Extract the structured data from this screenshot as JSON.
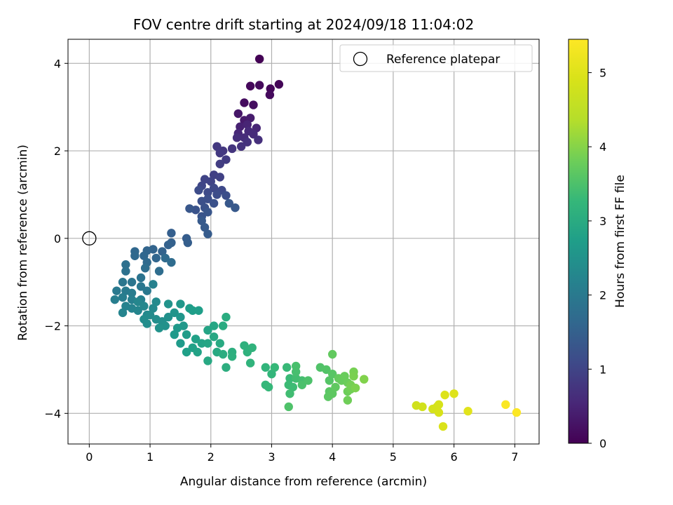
{
  "chart_data": {
    "type": "scatter",
    "title": "FOV centre drift starting at 2024/09/18 11:04:02",
    "xlabel": "Angular distance from reference (arcmin)",
    "ylabel": "Rotation from reference (arcmin)",
    "xlim": [
      -0.35,
      7.4
    ],
    "ylim": [
      -4.7,
      4.55
    ],
    "xticks": [
      0,
      1,
      2,
      3,
      4,
      5,
      6,
      7
    ],
    "yticks": [
      -4,
      -2,
      0,
      2,
      4
    ],
    "grid": true,
    "legend": {
      "placement": "top-right",
      "entries": [
        "Reference platepar"
      ]
    },
    "reference_point": {
      "x": 0,
      "y": 0,
      "label": "Reference platepar"
    },
    "colorbar": {
      "label": "Hours from first FF file",
      "range": [
        0,
        5.45
      ],
      "ticks": [
        0,
        1,
        2,
        3,
        4,
        5
      ],
      "colormap": "viridis"
    },
    "points": [
      [
        2.8,
        4.1,
        0.02
      ],
      [
        3.12,
        3.52,
        0.05
      ],
      [
        2.98,
        3.42,
        0.08
      ],
      [
        2.65,
        3.48,
        0.1
      ],
      [
        2.8,
        3.5,
        0.12
      ],
      [
        2.97,
        3.28,
        0.14
      ],
      [
        2.55,
        3.1,
        0.16
      ],
      [
        2.7,
        3.05,
        0.18
      ],
      [
        2.45,
        2.85,
        0.3
      ],
      [
        2.55,
        2.7,
        0.35
      ],
      [
        2.65,
        2.75,
        0.38
      ],
      [
        2.48,
        2.55,
        0.45
      ],
      [
        2.6,
        2.6,
        0.5
      ],
      [
        2.75,
        2.52,
        0.52
      ],
      [
        2.45,
        2.4,
        0.55
      ],
      [
        2.62,
        2.45,
        0.58
      ],
      [
        2.7,
        2.38,
        0.6
      ],
      [
        2.55,
        2.3,
        0.62
      ],
      [
        2.43,
        2.3,
        0.65
      ],
      [
        2.78,
        2.25,
        0.68
      ],
      [
        2.6,
        2.2,
        0.7
      ],
      [
        2.5,
        2.1,
        0.72
      ],
      [
        2.35,
        2.05,
        0.75
      ],
      [
        2.2,
        2.0,
        0.78
      ],
      [
        2.1,
        2.1,
        0.8
      ],
      [
        2.15,
        1.95,
        0.82
      ],
      [
        2.25,
        1.8,
        0.85
      ],
      [
        2.15,
        1.7,
        0.88
      ],
      [
        2.05,
        1.45,
        0.92
      ],
      [
        2.15,
        1.4,
        0.95
      ],
      [
        2.0,
        1.3,
        0.98
      ],
      [
        1.9,
        1.35,
        1.0
      ],
      [
        1.85,
        1.2,
        1.02
      ],
      [
        2.05,
        1.15,
        1.05
      ],
      [
        2.18,
        1.1,
        1.08
      ],
      [
        1.95,
        1.05,
        1.1
      ],
      [
        1.8,
        1.1,
        1.12
      ],
      [
        2.1,
        1.0,
        1.14
      ],
      [
        2.25,
        0.98,
        1.16
      ],
      [
        1.95,
        0.9,
        1.18
      ],
      [
        1.85,
        0.85,
        1.2
      ],
      [
        2.05,
        0.8,
        1.22
      ],
      [
        1.9,
        0.7,
        1.24
      ],
      [
        1.75,
        0.65,
        1.26
      ],
      [
        1.85,
        0.5,
        1.28
      ],
      [
        1.95,
        0.6,
        1.3
      ],
      [
        1.65,
        0.68,
        1.32
      ],
      [
        2.3,
        0.8,
        1.34
      ],
      [
        2.4,
        0.7,
        1.36
      ],
      [
        1.85,
        0.4,
        1.38
      ],
      [
        1.9,
        0.25,
        1.4
      ],
      [
        1.95,
        0.1,
        1.42
      ],
      [
        1.6,
        0.0,
        1.44
      ],
      [
        1.62,
        -0.1,
        1.46
      ],
      [
        1.35,
        0.12,
        1.48
      ],
      [
        1.35,
        -0.1,
        1.5
      ],
      [
        1.3,
        -0.15,
        1.52
      ],
      [
        1.2,
        -0.3,
        1.54
      ],
      [
        1.05,
        -0.25,
        1.56
      ],
      [
        0.95,
        -0.28,
        1.58
      ],
      [
        1.1,
        -0.45,
        1.6
      ],
      [
        0.9,
        -0.4,
        1.62
      ],
      [
        0.75,
        -0.3,
        1.64
      ],
      [
        0.75,
        -0.4,
        1.66
      ],
      [
        0.95,
        -0.55,
        1.68
      ],
      [
        1.25,
        -0.45,
        1.7
      ],
      [
        1.35,
        -0.55,
        1.72
      ],
      [
        1.15,
        -0.75,
        1.74
      ],
      [
        0.92,
        -0.68,
        1.76
      ],
      [
        0.6,
        -0.6,
        1.8
      ],
      [
        0.6,
        -0.75,
        1.82
      ],
      [
        0.85,
        -0.9,
        1.86
      ],
      [
        0.7,
        -1.0,
        1.9
      ],
      [
        0.55,
        -1.0,
        1.92
      ],
      [
        0.85,
        -1.1,
        1.95
      ],
      [
        0.95,
        -1.2,
        1.98
      ],
      [
        0.45,
        -1.2,
        2.0
      ],
      [
        0.6,
        -1.2,
        2.02
      ],
      [
        0.7,
        -1.25,
        2.05
      ],
      [
        0.55,
        -1.35,
        2.08
      ],
      [
        0.42,
        -1.4,
        2.1
      ],
      [
        0.7,
        -1.4,
        2.12
      ],
      [
        0.85,
        -1.4,
        2.14
      ],
      [
        1.05,
        -1.05,
        2.16
      ],
      [
        0.6,
        -1.55,
        2.18
      ],
      [
        0.7,
        -1.6,
        2.2
      ],
      [
        0.55,
        -1.7,
        2.22
      ],
      [
        0.8,
        -1.65,
        2.24
      ],
      [
        0.8,
        -1.45,
        2.26
      ],
      [
        0.9,
        -1.55,
        2.28
      ],
      [
        0.95,
        -1.75,
        2.3
      ],
      [
        1.05,
        -1.6,
        2.32
      ],
      [
        1.1,
        -1.45,
        2.34
      ],
      [
        1.0,
        -1.75,
        2.36
      ],
      [
        0.9,
        -1.85,
        2.38
      ],
      [
        0.95,
        -1.95,
        2.4
      ],
      [
        1.1,
        -1.85,
        2.42
      ],
      [
        1.2,
        -1.9,
        2.44
      ],
      [
        1.3,
        -1.8,
        2.46
      ],
      [
        1.25,
        -2.0,
        2.48
      ],
      [
        1.15,
        -2.05,
        2.5
      ],
      [
        1.3,
        -1.5,
        2.52
      ],
      [
        1.4,
        -1.7,
        2.54
      ],
      [
        1.5,
        -1.8,
        2.56
      ],
      [
        1.5,
        -1.5,
        2.58
      ],
      [
        1.55,
        -2.0,
        2.6
      ],
      [
        1.45,
        -2.05,
        2.62
      ],
      [
        1.4,
        -2.2,
        2.64
      ],
      [
        1.5,
        -2.4,
        2.66
      ],
      [
        1.6,
        -2.2,
        2.68
      ],
      [
        1.65,
        -1.6,
        2.7
      ],
      [
        1.7,
        -1.65,
        2.72
      ],
      [
        1.8,
        -1.65,
        2.74
      ],
      [
        1.6,
        -2.6,
        2.76
      ],
      [
        1.7,
        -2.5,
        2.78
      ],
      [
        1.75,
        -2.3,
        2.8
      ],
      [
        1.78,
        -2.6,
        2.82
      ],
      [
        1.85,
        -2.4,
        2.84
      ],
      [
        1.95,
        -2.1,
        2.86
      ],
      [
        1.95,
        -2.4,
        2.88
      ],
      [
        2.05,
        -2.0,
        2.9
      ],
      [
        2.05,
        -2.25,
        2.92
      ],
      [
        1.95,
        -2.8,
        2.94
      ],
      [
        2.1,
        -2.6,
        2.96
      ],
      [
        2.15,
        -2.4,
        2.98
      ],
      [
        2.2,
        -2.0,
        3.0
      ],
      [
        2.25,
        -1.8,
        3.02
      ],
      [
        2.2,
        -2.65,
        3.04
      ],
      [
        2.25,
        -2.95,
        3.06
      ],
      [
        2.35,
        -2.6,
        3.08
      ],
      [
        2.35,
        -2.7,
        3.1
      ],
      [
        2.55,
        -2.45,
        3.12
      ],
      [
        2.6,
        -2.6,
        3.14
      ],
      [
        2.68,
        -2.5,
        3.16
      ],
      [
        2.65,
        -2.85,
        3.18
      ],
      [
        2.9,
        -2.95,
        3.2
      ],
      [
        3.0,
        -3.1,
        3.22
      ],
      [
        2.9,
        -3.35,
        3.24
      ],
      [
        2.95,
        -3.4,
        3.26
      ],
      [
        3.05,
        -2.95,
        3.28
      ],
      [
        3.25,
        -2.95,
        3.3
      ],
      [
        3.3,
        -3.2,
        3.32
      ],
      [
        3.28,
        -3.35,
        3.34
      ],
      [
        3.35,
        -3.4,
        3.36
      ],
      [
        3.3,
        -3.55,
        3.38
      ],
      [
        3.4,
        -3.2,
        3.4
      ],
      [
        3.5,
        -3.25,
        3.42
      ],
      [
        3.4,
        -3.05,
        3.44
      ],
      [
        3.4,
        -2.92,
        3.46
      ],
      [
        3.5,
        -3.35,
        3.48
      ],
      [
        3.6,
        -3.25,
        3.5
      ],
      [
        3.28,
        -3.85,
        3.52
      ],
      [
        3.8,
        -2.95,
        3.54
      ],
      [
        3.9,
        -3.0,
        3.56
      ],
      [
        3.95,
        -3.25,
        3.58
      ],
      [
        4.0,
        -3.1,
        3.6
      ],
      [
        3.95,
        -3.5,
        3.62
      ],
      [
        3.93,
        -3.62,
        3.64
      ],
      [
        4.0,
        -3.55,
        3.66
      ],
      [
        4.05,
        -3.4,
        3.68
      ],
      [
        4.0,
        -2.65,
        3.7
      ],
      [
        4.1,
        -3.2,
        3.72
      ],
      [
        4.15,
        -3.25,
        3.74
      ],
      [
        4.2,
        -3.15,
        3.76
      ],
      [
        4.25,
        -3.3,
        3.78
      ],
      [
        4.25,
        -3.5,
        3.8
      ],
      [
        4.25,
        -3.7,
        3.82
      ],
      [
        4.3,
        -3.45,
        3.84
      ],
      [
        4.3,
        -3.35,
        3.86
      ],
      [
        4.35,
        -3.05,
        3.88
      ],
      [
        4.35,
        -3.15,
        3.9
      ],
      [
        4.38,
        -3.42,
        3.92
      ],
      [
        4.52,
        -3.22,
        3.96
      ],
      [
        5.38,
        -3.82,
        4.78
      ],
      [
        5.48,
        -3.85,
        4.8
      ],
      [
        5.65,
        -3.9,
        4.84
      ],
      [
        5.72,
        -3.85,
        4.86
      ],
      [
        5.75,
        -3.8,
        4.88
      ],
      [
        5.75,
        -3.98,
        4.9
      ],
      [
        5.82,
        -4.3,
        4.94
      ],
      [
        5.85,
        -3.58,
        4.98
      ],
      [
        6.0,
        -3.55,
        5.0
      ],
      [
        6.23,
        -3.95,
        5.04
      ],
      [
        6.85,
        -3.8,
        5.4
      ],
      [
        7.03,
        -3.98,
        5.44
      ]
    ]
  }
}
